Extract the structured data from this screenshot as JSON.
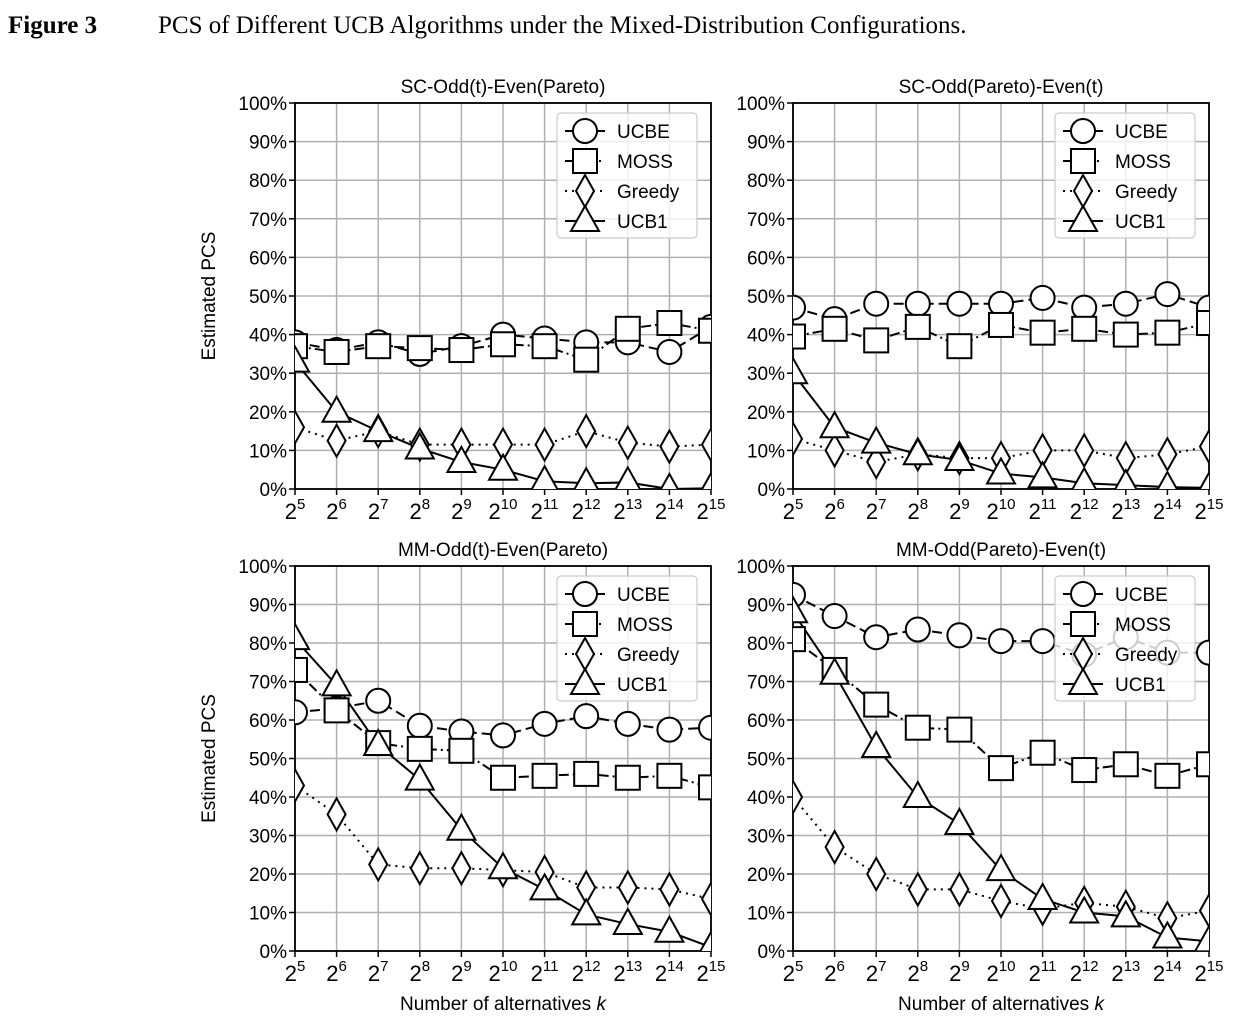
{
  "figure": {
    "label": "Figure 3",
    "caption": "PCS of Different UCB Algorithms under the Mixed-Distribution Configurations."
  },
  "chart_data": [
    {
      "type": "line",
      "title": "SC-Odd(t)-Even(Pareto)",
      "xlabel": "",
      "ylabel": "Estimated PCS",
      "x": [
        "2^5",
        "2^6",
        "2^7",
        "2^8",
        "2^9",
        "2^10",
        "2^11",
        "2^12",
        "2^13",
        "2^14",
        "2^15"
      ],
      "ylim": [
        0,
        100
      ],
      "yticks": [
        "0%",
        "10%",
        "20%",
        "30%",
        "40%",
        "50%",
        "60%",
        "70%",
        "80%",
        "90%",
        "100%"
      ],
      "grid": true,
      "legend": "top-right",
      "series": [
        {
          "name": "UCBE",
          "marker": "circle",
          "linestyle": "dashed",
          "values": [
            38,
            36,
            38,
            35,
            37,
            40,
            39,
            38,
            38,
            35.5,
            42
          ]
        },
        {
          "name": "MOSS",
          "marker": "square",
          "linestyle": "dashdot",
          "values": [
            37,
            35.5,
            37,
            36.5,
            36,
            37.5,
            37,
            33.5,
            41.5,
            43,
            41
          ]
        },
        {
          "name": "Greedy",
          "marker": "diamond",
          "linestyle": "dotted",
          "values": [
            16,
            12.5,
            15,
            11.5,
            11.5,
            11.5,
            11.5,
            15,
            12,
            11,
            11.5
          ]
        },
        {
          "name": "UCB1",
          "marker": "triangle",
          "linestyle": "solid",
          "values": [
            33,
            20,
            15,
            10.5,
            7,
            5,
            2,
            1.5,
            1.7,
            0,
            0.2
          ]
        }
      ]
    },
    {
      "type": "line",
      "title": "SC-Odd(Pareto)-Even(t)",
      "xlabel": "",
      "ylabel": "",
      "x": [
        "2^5",
        "2^6",
        "2^7",
        "2^8",
        "2^9",
        "2^10",
        "2^11",
        "2^12",
        "2^13",
        "2^14",
        "2^15"
      ],
      "ylim": [
        0,
        100
      ],
      "yticks": [
        "0%",
        "10%",
        "20%",
        "30%",
        "40%",
        "50%",
        "60%",
        "70%",
        "80%",
        "90%",
        "100%"
      ],
      "grid": true,
      "legend": "top-right",
      "series": [
        {
          "name": "UCBE",
          "marker": "circle",
          "linestyle": "dashed",
          "values": [
            47,
            44,
            48,
            48,
            48,
            48,
            49.5,
            47,
            48,
            50.5,
            47
          ]
        },
        {
          "name": "MOSS",
          "marker": "square",
          "linestyle": "dashdot",
          "values": [
            39.5,
            41.5,
            38.5,
            42,
            37,
            42.5,
            40.5,
            41.5,
            40,
            40.5,
            43
          ]
        },
        {
          "name": "Greedy",
          "marker": "diamond",
          "linestyle": "dotted",
          "values": [
            13,
            10,
            7,
            9,
            8,
            8,
            10,
            10,
            8,
            9,
            11
          ]
        },
        {
          "name": "UCB1",
          "marker": "triangle",
          "linestyle": "solid",
          "values": [
            30,
            16,
            12,
            9,
            7.5,
            4,
            3,
            1.5,
            1,
            0.5,
            0.3
          ]
        }
      ]
    },
    {
      "type": "line",
      "title": "MM-Odd(t)-Even(Pareto)",
      "xlabel": "Number of alternatives k",
      "ylabel": "Estimated PCS",
      "x": [
        "2^5",
        "2^6",
        "2^7",
        "2^8",
        "2^9",
        "2^10",
        "2^11",
        "2^12",
        "2^13",
        "2^14",
        "2^15"
      ],
      "ylim": [
        0,
        100
      ],
      "yticks": [
        "0%",
        "10%",
        "20%",
        "30%",
        "40%",
        "50%",
        "60%",
        "70%",
        "80%",
        "90%",
        "100%"
      ],
      "grid": true,
      "legend": "top-right",
      "series": [
        {
          "name": "UCBE",
          "marker": "circle",
          "linestyle": "dashed",
          "values": [
            62,
            63,
            65,
            58.5,
            57,
            56,
            59,
            61,
            59,
            57.5,
            58
          ]
        },
        {
          "name": "MOSS",
          "marker": "square",
          "linestyle": "dashdot",
          "values": [
            73,
            62.5,
            54,
            52.5,
            52,
            45,
            45.5,
            46,
            45,
            45.5,
            42.5
          ]
        },
        {
          "name": "Greedy",
          "marker": "diamond",
          "linestyle": "dotted",
          "values": [
            43,
            35.5,
            22.5,
            21.5,
            21.5,
            21,
            20.5,
            16.5,
            16.5,
            16,
            13.5
          ]
        },
        {
          "name": "UCB1",
          "marker": "triangle",
          "linestyle": "solid",
          "values": [
            81,
            69,
            53.5,
            44.5,
            31.5,
            21.5,
            16,
            9.5,
            7,
            5,
            1
          ]
        }
      ]
    },
    {
      "type": "line",
      "title": "MM-Odd(Pareto)-Even(t)",
      "xlabel": "Number of alternatives k",
      "ylabel": "",
      "x": [
        "2^5",
        "2^6",
        "2^7",
        "2^8",
        "2^9",
        "2^10",
        "2^11",
        "2^12",
        "2^13",
        "2^14",
        "2^15"
      ],
      "ylim": [
        0,
        100
      ],
      "yticks": [
        "0%",
        "10%",
        "20%",
        "30%",
        "40%",
        "50%",
        "60%",
        "70%",
        "80%",
        "90%",
        "100%"
      ],
      "grid": true,
      "legend": "top-right",
      "series": [
        {
          "name": "UCBE",
          "marker": "circle",
          "linestyle": "dashed",
          "values": [
            92.5,
            87,
            81.5,
            83.5,
            82,
            80.5,
            80.5,
            77,
            81.5,
            77.5,
            77.5
          ]
        },
        {
          "name": "MOSS",
          "marker": "square",
          "linestyle": "dashdot",
          "values": [
            81,
            73,
            64,
            58,
            57.5,
            47.5,
            51.5,
            47,
            48.5,
            45.5,
            48.5
          ]
        },
        {
          "name": "Greedy",
          "marker": "diamond",
          "linestyle": "dotted",
          "values": [
            40,
            27,
            20,
            16,
            16,
            13,
            11,
            12.5,
            11.5,
            8.5,
            10.5
          ]
        },
        {
          "name": "UCB1",
          "marker": "triangle",
          "linestyle": "solid",
          "values": [
            88,
            72,
            53,
            40,
            33,
            21,
            13.5,
            10,
            9,
            3.5,
            2.5
          ]
        }
      ]
    }
  ]
}
